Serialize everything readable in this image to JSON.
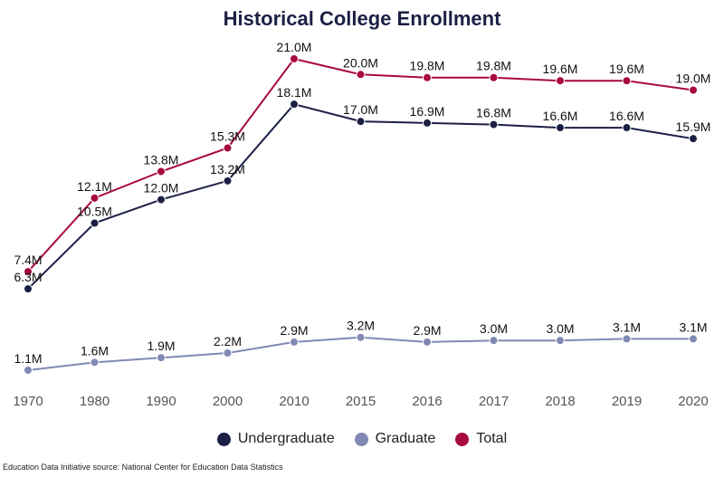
{
  "chart_data": {
    "type": "line",
    "title": "Historical College Enrollment",
    "categories": [
      "1970",
      "1980",
      "1990",
      "2000",
      "2010",
      "2015",
      "2016",
      "2017",
      "2018",
      "2019",
      "2020"
    ],
    "series": [
      {
        "name": "Undergraduate",
        "color": "#1b2044",
        "values": [
          6.3,
          10.5,
          12.0,
          13.2,
          18.1,
          17.0,
          16.9,
          16.8,
          16.6,
          16.6,
          15.9
        ],
        "labels": [
          "6.3M",
          "10.5M",
          "12.0M",
          "13.2M",
          "18.1M",
          "17.0M",
          "16.9M",
          "16.8M",
          "16.6M",
          "16.6M",
          "15.9M"
        ]
      },
      {
        "name": "Graduate",
        "color": "#8189b3",
        "values": [
          1.1,
          1.6,
          1.9,
          2.2,
          2.9,
          3.2,
          2.9,
          3.0,
          3.0,
          3.1,
          3.1
        ],
        "labels": [
          "1.1M",
          "1.6M",
          "1.9M",
          "2.2M",
          "2.9M",
          "3.2M",
          "2.9M",
          "3.0M",
          "3.0M",
          "3.1M",
          "3.1M"
        ]
      },
      {
        "name": "Total",
        "color": "#a8093f",
        "values": [
          7.4,
          12.1,
          13.8,
          15.3,
          21.0,
          20.0,
          19.8,
          19.8,
          19.6,
          19.6,
          19.0
        ],
        "labels": [
          "7.4M",
          "12.1M",
          "13.8M",
          "15.3M",
          "21.0M",
          "20.0M",
          "19.8M",
          "19.8M",
          "19.6M",
          "19.6M",
          "19.0M"
        ]
      }
    ],
    "xlabel": "",
    "ylabel": "",
    "ylim": [
      0,
      21
    ],
    "grid": false,
    "legend_position": "bottom"
  },
  "source_note": "Education Data Initiative source: National Center for Education Data Statistics"
}
